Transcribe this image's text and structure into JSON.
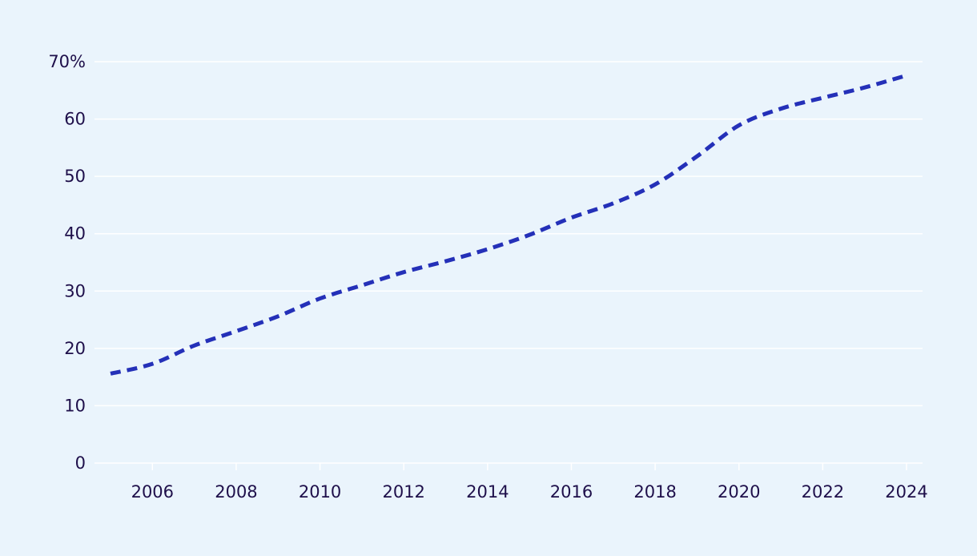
{
  "chart_data": {
    "type": "line",
    "title": "",
    "xlabel": "",
    "ylabel": "",
    "ylim": [
      0,
      70
    ],
    "xlim": [
      2005,
      2024
    ],
    "y_ticks": [
      {
        "value": 0,
        "label": "0"
      },
      {
        "value": 10,
        "label": "10"
      },
      {
        "value": 20,
        "label": "20"
      },
      {
        "value": 30,
        "label": "30"
      },
      {
        "value": 40,
        "label": "40"
      },
      {
        "value": 50,
        "label": "50"
      },
      {
        "value": 60,
        "label": "60"
      },
      {
        "value": 70,
        "label": "70%"
      }
    ],
    "x_ticks": [
      {
        "value": 2006,
        "label": "2006"
      },
      {
        "value": 2008,
        "label": "2008"
      },
      {
        "value": 2010,
        "label": "2010"
      },
      {
        "value": 2012,
        "label": "2012"
      },
      {
        "value": 2014,
        "label": "2014"
      },
      {
        "value": 2016,
        "label": "2016"
      },
      {
        "value": 2018,
        "label": "2018"
      },
      {
        "value": 2020,
        "label": "2020"
      },
      {
        "value": 2022,
        "label": "2022"
      },
      {
        "value": 2024,
        "label": "2024"
      }
    ],
    "grid": true,
    "line_style": "dashed",
    "series": [
      {
        "color": "#2430b8",
        "x": [
          2005,
          2006,
          2007,
          2008,
          2009,
          2010,
          2011,
          2012,
          2013,
          2014,
          2015,
          2016,
          2017,
          2018,
          2019,
          2020,
          2021,
          2022,
          2023,
          2024
        ],
        "values": [
          15.6,
          17.3,
          20.5,
          23.0,
          25.6,
          28.7,
          31.0,
          33.3,
          35.2,
          37.3,
          39.8,
          42.8,
          45.3,
          48.6,
          53.5,
          58.9,
          61.8,
          63.7,
          65.5,
          67.6
        ]
      }
    ]
  }
}
